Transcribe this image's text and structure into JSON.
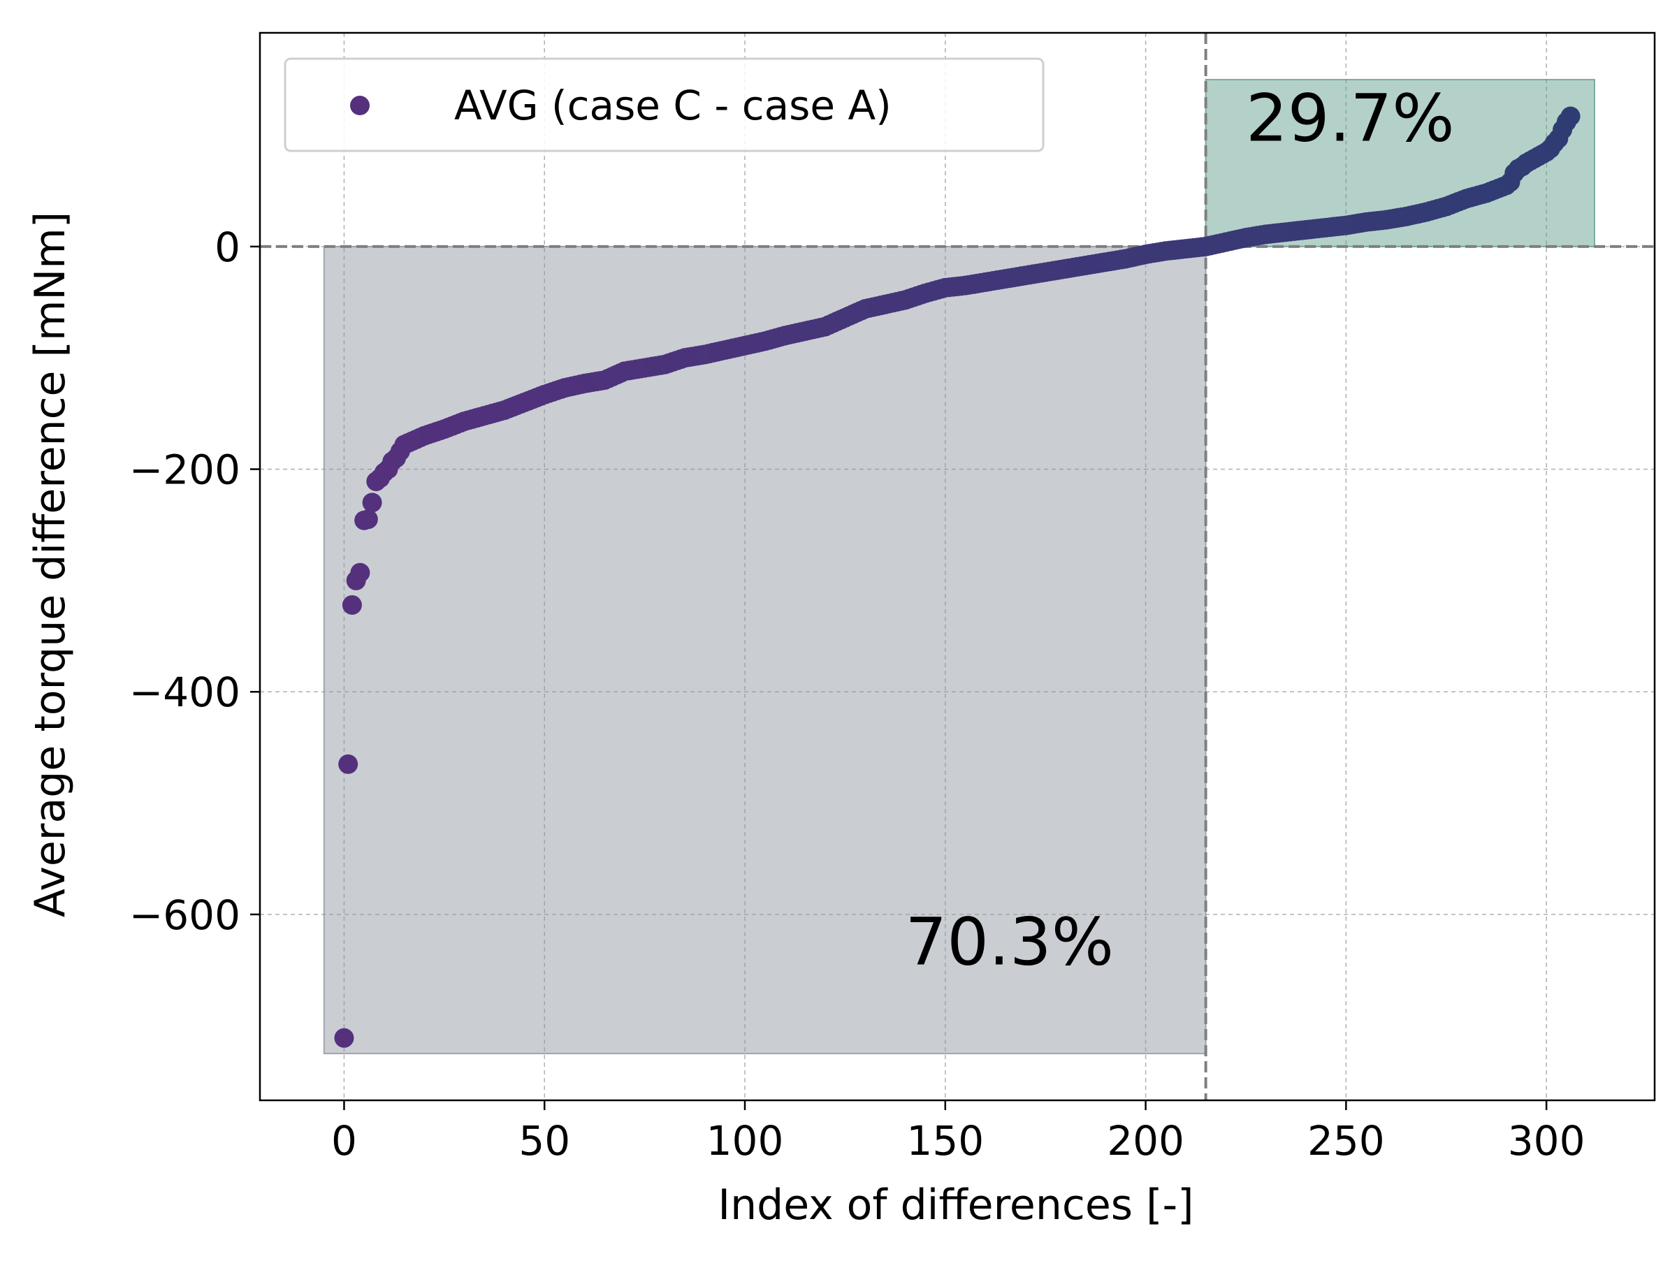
{
  "chart_data": {
    "type": "scatter",
    "xlabel": "Index of differences [-]",
    "ylabel": "Average torque difference [mNm]",
    "xlim": [
      -21,
      327
    ],
    "ylim": [
      -767,
      192
    ],
    "xticks": [
      0,
      50,
      100,
      150,
      200,
      250,
      300
    ],
    "yticks": [
      -600,
      -400,
      -200,
      0
    ],
    "ytick_labels": [
      "−600",
      "−400",
      "−200",
      "0"
    ],
    "grid": true,
    "legend": {
      "position": "top-left",
      "label": "AVG (case C - case A)"
    },
    "threshold_x": 215,
    "threshold_y": 0,
    "regions": [
      {
        "x0": -5,
        "x1": 215,
        "y0": -725,
        "y1": 0,
        "color": "#8f96a2",
        "label": "70.3%",
        "label_x": 140,
        "label_y": -645
      },
      {
        "x0": 215,
        "x1": 312,
        "y0": 0,
        "y1": 150,
        "color": "#5f9e8c",
        "label": "29.7%",
        "label_x": 225,
        "label_y": 95
      }
    ],
    "series": [
      {
        "name": "AVG (case C - case A)",
        "color_start": "#55307d",
        "color_end": "#2f3c73",
        "points": [
          [
            0,
            -711
          ],
          [
            1,
            -465
          ],
          [
            2,
            -322
          ],
          [
            3,
            -300
          ],
          [
            4,
            -293
          ],
          [
            5,
            -246
          ],
          [
            6,
            -245
          ],
          [
            7,
            -230
          ],
          [
            8,
            -211
          ],
          [
            9,
            -208
          ],
          [
            10,
            -203
          ],
          [
            11,
            -200
          ],
          [
            12,
            -193
          ],
          [
            13,
            -190
          ],
          [
            15,
            -178
          ],
          [
            20,
            -170
          ],
          [
            25,
            -164
          ],
          [
            30,
            -157
          ],
          [
            35,
            -152
          ],
          [
            40,
            -147
          ],
          [
            45,
            -140
          ],
          [
            50,
            -133
          ],
          [
            55,
            -127
          ],
          [
            60,
            -123
          ],
          [
            65,
            -120
          ],
          [
            70,
            -112
          ],
          [
            75,
            -109
          ],
          [
            80,
            -106
          ],
          [
            85,
            -100
          ],
          [
            90,
            -97
          ],
          [
            95,
            -93
          ],
          [
            100,
            -89
          ],
          [
            105,
            -85
          ],
          [
            110,
            -80
          ],
          [
            115,
            -76
          ],
          [
            120,
            -72
          ],
          [
            125,
            -64
          ],
          [
            130,
            -56
          ],
          [
            135,
            -52
          ],
          [
            140,
            -48
          ],
          [
            145,
            -42
          ],
          [
            150,
            -37
          ],
          [
            155,
            -35
          ],
          [
            160,
            -32
          ],
          [
            165,
            -29
          ],
          [
            170,
            -26
          ],
          [
            175,
            -23
          ],
          [
            180,
            -20
          ],
          [
            185,
            -17
          ],
          [
            190,
            -14
          ],
          [
            195,
            -11
          ],
          [
            200,
            -7
          ],
          [
            205,
            -4
          ],
          [
            210,
            -2
          ],
          [
            215,
            0
          ],
          [
            220,
            4
          ],
          [
            225,
            8
          ],
          [
            230,
            11
          ],
          [
            235,
            13
          ],
          [
            240,
            15
          ],
          [
            245,
            17
          ],
          [
            250,
            19
          ],
          [
            255,
            22
          ],
          [
            260,
            24
          ],
          [
            265,
            27
          ],
          [
            270,
            31
          ],
          [
            275,
            36
          ],
          [
            280,
            43
          ],
          [
            285,
            48
          ],
          [
            290,
            55
          ],
          [
            291,
            58
          ],
          [
            292,
            66
          ],
          [
            293,
            70
          ],
          [
            294,
            72
          ],
          [
            295,
            75
          ],
          [
            296,
            77
          ],
          [
            297,
            79
          ],
          [
            298,
            81
          ],
          [
            299,
            83
          ],
          [
            300,
            85
          ],
          [
            301,
            88
          ],
          [
            302,
            93
          ],
          [
            303,
            97
          ],
          [
            304,
            105
          ],
          [
            305,
            112
          ],
          [
            306,
            117
          ]
        ]
      }
    ]
  }
}
